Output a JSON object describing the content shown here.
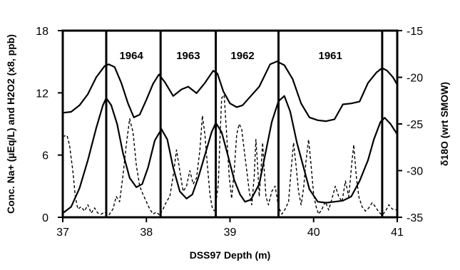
{
  "chart_data": {
    "type": "line",
    "xlabel": "DSS97 Depth (m)",
    "ylabel_left": "Conc. Na+ (µEq/L) and H2O2 (x8, ppb)",
    "ylabel_right": "δ18O (wrt SMOW)",
    "xlim": [
      37,
      41
    ],
    "ylim_left": [
      0,
      18
    ],
    "ylim_right": [
      -35,
      -15
    ],
    "x_ticks": [
      37,
      38,
      39,
      40,
      41
    ],
    "x_tick_labels": [
      "37",
      "38",
      "39",
      "40",
      "41"
    ],
    "y_left_ticks": [
      0,
      6,
      12,
      18
    ],
    "y_left_tick_labels": [
      "0",
      "6",
      "12",
      "18"
    ],
    "y_right_ticks": [
      -35,
      -30,
      -25,
      -20,
      -15
    ],
    "y_right_tick_labels": [
      "-35",
      "-30",
      "-25",
      "-20",
      "-15"
    ],
    "year_boundaries": [
      37.52,
      38.17,
      38.83,
      39.58,
      40.82
    ],
    "year_labels": [
      {
        "text": "1964",
        "x": 37.82
      },
      {
        "text": "1963",
        "x": 38.5
      },
      {
        "text": "1962",
        "x": 39.15
      },
      {
        "text": "1961",
        "x": 40.2
      }
    ],
    "series": [
      {
        "axis": "right",
        "style": "solid",
        "points": [
          [
            37.0,
            -23.8
          ],
          [
            37.1,
            -23.7
          ],
          [
            37.2,
            -23.0
          ],
          [
            37.3,
            -21.8
          ],
          [
            37.4,
            -20.0
          ],
          [
            37.5,
            -18.8
          ],
          [
            37.55,
            -18.6
          ],
          [
            37.62,
            -18.9
          ],
          [
            37.7,
            -20.6
          ],
          [
            37.78,
            -22.8
          ],
          [
            37.85,
            -24.3
          ],
          [
            37.92,
            -24.0
          ],
          [
            38.0,
            -22.4
          ],
          [
            38.08,
            -20.7
          ],
          [
            38.15,
            -19.7
          ],
          [
            38.22,
            -20.5
          ],
          [
            38.32,
            -22.0
          ],
          [
            38.42,
            -21.3
          ],
          [
            38.5,
            -21.0
          ],
          [
            38.6,
            -21.7
          ],
          [
            38.7,
            -20.6
          ],
          [
            38.8,
            -19.3
          ],
          [
            38.85,
            -19.6
          ],
          [
            38.92,
            -21.5
          ],
          [
            39.0,
            -22.8
          ],
          [
            39.08,
            -23.2
          ],
          [
            39.15,
            -23.0
          ],
          [
            39.25,
            -22.0
          ],
          [
            39.35,
            -21.0
          ],
          [
            39.48,
            -18.6
          ],
          [
            39.56,
            -18.3
          ],
          [
            39.65,
            -18.7
          ],
          [
            39.75,
            -20.2
          ],
          [
            39.85,
            -22.8
          ],
          [
            39.95,
            -24.3
          ],
          [
            40.05,
            -24.6
          ],
          [
            40.15,
            -24.7
          ],
          [
            40.25,
            -24.5
          ],
          [
            40.35,
            -22.9
          ],
          [
            40.45,
            -22.8
          ],
          [
            40.55,
            -22.6
          ],
          [
            40.65,
            -20.6
          ],
          [
            40.75,
            -19.5
          ],
          [
            40.82,
            -19.0
          ],
          [
            40.88,
            -19.3
          ],
          [
            40.95,
            -20.0
          ],
          [
            41.0,
            -20.8
          ]
        ]
      },
      {
        "axis": "left",
        "style": "solid",
        "points": [
          [
            37.0,
            0.4
          ],
          [
            37.1,
            1.0
          ],
          [
            37.2,
            2.8
          ],
          [
            37.3,
            5.5
          ],
          [
            37.4,
            8.6
          ],
          [
            37.48,
            10.8
          ],
          [
            37.52,
            11.5
          ],
          [
            37.58,
            10.8
          ],
          [
            37.65,
            9.0
          ],
          [
            37.72,
            6.2
          ],
          [
            37.8,
            3.8
          ],
          [
            37.88,
            2.9
          ],
          [
            37.95,
            3.2
          ],
          [
            38.02,
            4.8
          ],
          [
            38.1,
            7.4
          ],
          [
            38.18,
            8.5
          ],
          [
            38.25,
            7.5
          ],
          [
            38.32,
            4.8
          ],
          [
            38.4,
            2.5
          ],
          [
            38.48,
            1.8
          ],
          [
            38.55,
            2.2
          ],
          [
            38.62,
            3.8
          ],
          [
            38.7,
            6.0
          ],
          [
            38.78,
            8.2
          ],
          [
            38.83,
            9.1
          ],
          [
            38.9,
            8.2
          ],
          [
            38.98,
            5.8
          ],
          [
            39.05,
            3.6
          ],
          [
            39.12,
            2.2
          ],
          [
            39.18,
            1.5
          ],
          [
            39.25,
            1.7
          ],
          [
            39.35,
            3.2
          ],
          [
            39.42,
            6.0
          ],
          [
            39.5,
            9.2
          ],
          [
            39.58,
            11.2
          ],
          [
            39.65,
            11.7
          ],
          [
            39.72,
            10.2
          ],
          [
            39.8,
            7.2
          ],
          [
            39.88,
            4.8
          ],
          [
            39.95,
            2.7
          ],
          [
            40.05,
            1.5
          ],
          [
            40.15,
            1.4
          ],
          [
            40.25,
            1.5
          ],
          [
            40.35,
            1.6
          ],
          [
            40.45,
            2.0
          ],
          [
            40.55,
            3.5
          ],
          [
            40.65,
            5.5
          ],
          [
            40.72,
            7.5
          ],
          [
            40.8,
            9.2
          ],
          [
            40.85,
            9.6
          ],
          [
            40.92,
            9.0
          ],
          [
            41.0,
            8.0
          ]
        ]
      },
      {
        "axis": "left",
        "style": "dashed",
        "points": [
          [
            37.0,
            7.8
          ],
          [
            37.05,
            7.9
          ],
          [
            37.08,
            7.0
          ],
          [
            37.12,
            4.5
          ],
          [
            37.15,
            2.0
          ],
          [
            37.18,
            0.8
          ],
          [
            37.22,
            1.0
          ],
          [
            37.26,
            0.6
          ],
          [
            37.3,
            1.2
          ],
          [
            37.34,
            0.4
          ],
          [
            37.38,
            0.9
          ],
          [
            37.42,
            0.4
          ],
          [
            37.46,
            0.3
          ],
          [
            37.5,
            0.5
          ],
          [
            37.55,
            0.2
          ],
          [
            37.6,
            0.8
          ],
          [
            37.64,
            2.0
          ],
          [
            37.68,
            1.5
          ],
          [
            37.72,
            4.0
          ],
          [
            37.76,
            7.0
          ],
          [
            37.8,
            9.5
          ],
          [
            37.84,
            8.2
          ],
          [
            37.88,
            5.0
          ],
          [
            37.92,
            3.0
          ],
          [
            37.96,
            2.2
          ],
          [
            38.0,
            1.5
          ],
          [
            38.04,
            0.8
          ],
          [
            38.08,
            0.3
          ],
          [
            38.12,
            0.5
          ],
          [
            38.16,
            0.2
          ],
          [
            38.2,
            0.8
          ],
          [
            38.24,
            1.5
          ],
          [
            38.28,
            2.0
          ],
          [
            38.32,
            4.0
          ],
          [
            38.36,
            6.5
          ],
          [
            38.4,
            4.5
          ],
          [
            38.44,
            2.5
          ],
          [
            38.48,
            3.0
          ],
          [
            38.52,
            4.5
          ],
          [
            38.56,
            3.2
          ],
          [
            38.6,
            3.8
          ],
          [
            38.64,
            6.5
          ],
          [
            38.67,
            9.8
          ],
          [
            38.7,
            8.0
          ],
          [
            38.73,
            5.0
          ],
          [
            38.76,
            2.2
          ],
          [
            38.79,
            0.8
          ],
          [
            38.82,
            0.6
          ],
          [
            38.86,
            3.2
          ],
          [
            38.88,
            7.5
          ],
          [
            38.9,
            11.5
          ],
          [
            38.93,
            11.8
          ],
          [
            38.96,
            8.0
          ],
          [
            38.99,
            4.0
          ],
          [
            39.02,
            1.8
          ],
          [
            39.05,
            4.5
          ],
          [
            39.08,
            8.0
          ],
          [
            39.11,
            9.0
          ],
          [
            39.14,
            8.5
          ],
          [
            39.17,
            6.5
          ],
          [
            39.2,
            4.5
          ],
          [
            39.23,
            2.5
          ],
          [
            39.26,
            1.2
          ],
          [
            39.29,
            4.0
          ],
          [
            39.31,
            7.5
          ],
          [
            39.33,
            5.0
          ],
          [
            39.35,
            2.0
          ],
          [
            39.37,
            4.5
          ],
          [
            39.39,
            7.2
          ],
          [
            39.41,
            4.5
          ],
          [
            39.43,
            2.0
          ],
          [
            39.46,
            1.2
          ],
          [
            39.5,
            2.5
          ],
          [
            39.54,
            3.0
          ],
          [
            39.58,
            1.0
          ],
          [
            39.62,
            0.3
          ],
          [
            39.66,
            0.8
          ],
          [
            39.7,
            1.5
          ],
          [
            39.73,
            4.5
          ],
          [
            39.76,
            7.2
          ],
          [
            39.79,
            5.0
          ],
          [
            39.82,
            2.5
          ],
          [
            39.85,
            1.2
          ],
          [
            39.88,
            2.8
          ],
          [
            39.91,
            5.5
          ],
          [
            39.94,
            7.5
          ],
          [
            39.97,
            5.0
          ],
          [
            40.0,
            2.2
          ],
          [
            40.03,
            1.0
          ],
          [
            40.06,
            0.3
          ],
          [
            40.1,
            0.8
          ],
          [
            40.14,
            1.5
          ],
          [
            40.18,
            0.7
          ],
          [
            40.22,
            1.8
          ],
          [
            40.26,
            3.0
          ],
          [
            40.3,
            2.0
          ],
          [
            40.34,
            1.5
          ],
          [
            40.38,
            3.5
          ],
          [
            40.42,
            2.0
          ],
          [
            40.46,
            5.5
          ],
          [
            40.48,
            7.0
          ],
          [
            40.51,
            4.0
          ],
          [
            40.54,
            2.0
          ],
          [
            40.58,
            1.0
          ],
          [
            40.62,
            0.6
          ],
          [
            40.66,
            0.9
          ],
          [
            40.7,
            1.4
          ],
          [
            40.74,
            1.0
          ],
          [
            40.78,
            0.5
          ],
          [
            40.82,
            0.2
          ],
          [
            40.86,
            0.6
          ],
          [
            40.9,
            1.2
          ],
          [
            40.94,
            0.8
          ],
          [
            41.0,
            0.7
          ]
        ]
      }
    ]
  }
}
